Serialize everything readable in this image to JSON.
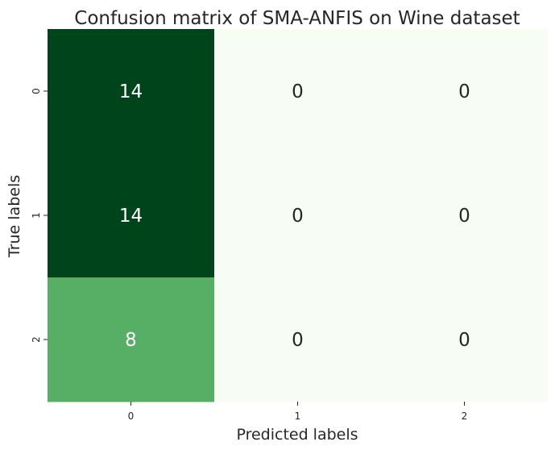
{
  "chart_data": {
    "type": "heatmap",
    "title": "Confusion matrix of SMA-ANFIS on Wine dataset",
    "xlabel": "Predicted labels",
    "ylabel": "True labels",
    "x_categories": [
      "0",
      "1",
      "2"
    ],
    "y_categories": [
      "0",
      "1",
      "2"
    ],
    "values": [
      [
        14,
        0,
        0
      ],
      [
        14,
        0,
        0
      ],
      [
        8,
        0,
        0
      ]
    ],
    "colormap": "Greens",
    "color_min": "#f7fcf5",
    "color_mid": "#5ab469",
    "color_max": "#00441b",
    "colorbar": false,
    "grid": false
  }
}
